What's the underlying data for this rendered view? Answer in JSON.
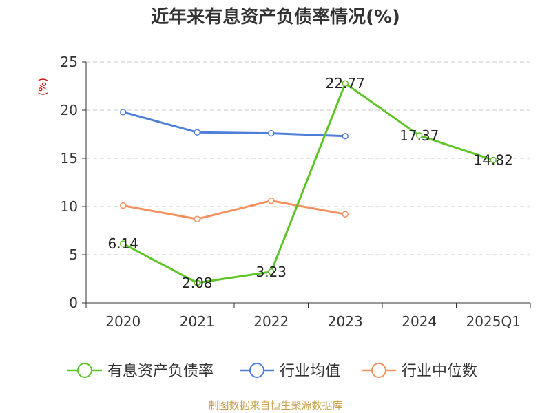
{
  "chart_data": {
    "type": "line",
    "title": "近年来有息资产负债率情况(%)",
    "y_unit": "(%)",
    "categories": [
      "2020",
      "2021",
      "2022",
      "2023",
      "2024",
      "2025Q1"
    ],
    "ylim": [
      0,
      25
    ],
    "yticks": [
      "0",
      "5",
      "10",
      "15",
      "20",
      "25"
    ],
    "grid": true,
    "legend_position": "bottom",
    "series": [
      {
        "name": "有息资产负债率",
        "color": "#5fc425",
        "values": [
          6.14,
          2.08,
          3.23,
          22.77,
          17.37,
          14.82
        ],
        "labels": [
          "6.14",
          "2.08",
          "3.23",
          "22.77",
          "17.37",
          "14.82"
        ]
      },
      {
        "name": "行业均值",
        "color": "#4e7fd9",
        "values": [
          19.8,
          17.7,
          17.6,
          17.3,
          null,
          null
        ]
      },
      {
        "name": "行业中位数",
        "color": "#f4915e",
        "values": [
          10.1,
          8.7,
          10.6,
          9.2,
          null,
          null
        ]
      }
    ]
  },
  "source": "制图数据来自恒生聚源数据库",
  "colors": {
    "unit": "#cc0000",
    "source": "#c8a04a",
    "grid": "#c8c8c8",
    "axis": "#333333"
  }
}
